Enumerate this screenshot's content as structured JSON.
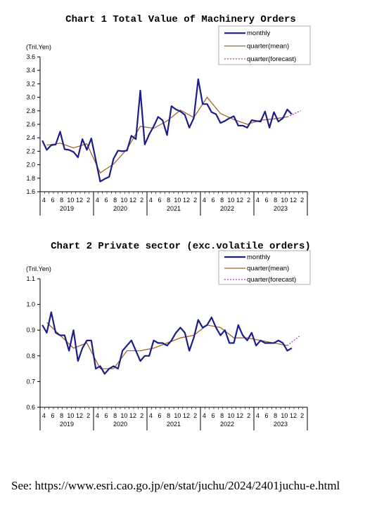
{
  "footer": {
    "text": "See: https://www.esri.cao.go.jp/en/stat/juchu/2024/2401juchu-e.html"
  },
  "chart_data": [
    {
      "type": "line",
      "title": "Chart 1 Total Value of Machinery Orders",
      "ylabel": "(Tril.Yen)",
      "ylim": [
        1.6,
        3.6
      ],
      "yticks": [
        "1.6",
        "1.8",
        "2.0",
        "2.2",
        "2.4",
        "2.6",
        "2.8",
        "3.0",
        "3.2",
        "3.4",
        "3.6"
      ],
      "x_month_labels": [
        "4",
        "6",
        "8",
        "10",
        "12",
        "2",
        "4",
        "6",
        "8",
        "10",
        "12",
        "2",
        "4",
        "6",
        "8",
        "10",
        "12",
        "2",
        "4",
        "6",
        "8",
        "10",
        "12",
        "2",
        "4",
        "6",
        "8",
        "10",
        "12",
        "2"
      ],
      "x_year_labels": [
        "2019",
        "2020",
        "2021",
        "2022",
        "2023"
      ],
      "legend": [
        "monthly",
        "quarter(mean)",
        "quarter(forecast)"
      ],
      "colors": {
        "monthly": "#1c1c8a",
        "quarter_mean": "#a0682a",
        "quarter_forecast": "#b030b0"
      },
      "series": [
        {
          "name": "monthly",
          "values": [
            2.36,
            2.22,
            2.29,
            2.3,
            2.49,
            2.23,
            2.22,
            2.19,
            2.11,
            2.38,
            2.22,
            2.39,
            2.07,
            1.75,
            1.79,
            1.82,
            2.09,
            2.21,
            2.2,
            2.21,
            2.43,
            2.38,
            3.1,
            2.3,
            2.45,
            2.57,
            2.71,
            2.66,
            2.44,
            2.87,
            2.82,
            2.79,
            2.74,
            2.55,
            2.69,
            3.27,
            2.9,
            2.9,
            2.78,
            2.75,
            2.62,
            2.65,
            2.69,
            2.72,
            2.58,
            2.58,
            2.55,
            2.66,
            2.65,
            2.64,
            2.79,
            2.55,
            2.78,
            2.64,
            2.69,
            2.82,
            2.75
          ]
        },
        {
          "name": "quarter(mean)",
          "points": [
            [
              1,
              2.29
            ],
            [
              4,
              2.32
            ],
            [
              7,
              2.25
            ],
            [
              10,
              2.31
            ],
            [
              13,
              1.88
            ],
            [
              16,
              2.01
            ],
            [
              19,
              2.23
            ],
            [
              22,
              2.57
            ],
            [
              25,
              2.54
            ],
            [
              28,
              2.65
            ],
            [
              31,
              2.81
            ],
            [
              34,
              2.7
            ],
            [
              37,
              3.0
            ],
            [
              40,
              2.76
            ],
            [
              43,
              2.67
            ],
            [
              46,
              2.6
            ],
            [
              49,
              2.66
            ],
            [
              52,
              2.68
            ],
            [
              55,
              2.71
            ]
          ]
        },
        {
          "name": "quarter(forecast)",
          "points": [
            [
              55,
              2.71
            ],
            [
              58,
              2.8
            ]
          ]
        }
      ]
    },
    {
      "type": "line",
      "title": "Chart 2 Private sector (exc.volatile orders)",
      "ylabel": "(Tril.Yen)",
      "ylim": [
        0.6,
        1.1
      ],
      "yticks": [
        "0.6",
        "0.7",
        "0.8",
        "0.9",
        "1.0",
        "1.1"
      ],
      "x_month_labels": [
        "4",
        "6",
        "8",
        "10",
        "12",
        "2",
        "4",
        "6",
        "8",
        "10",
        "12",
        "2",
        "4",
        "6",
        "8",
        "10",
        "12",
        "2",
        "4",
        "6",
        "8",
        "10",
        "12",
        "2",
        "4",
        "6",
        "8",
        "10",
        "12",
        "2"
      ],
      "x_year_labels": [
        "2019",
        "2020",
        "2021",
        "2022",
        "2023"
      ],
      "legend": [
        "monthly",
        "quarter(mean)",
        "quarter(forecast)"
      ],
      "colors": {
        "monthly": "#1c1c8a",
        "quarter_mean": "#a0682a",
        "quarter_forecast": "#b030b0"
      },
      "series": [
        {
          "name": "monthly",
          "values": [
            0.92,
            0.89,
            0.97,
            0.89,
            0.88,
            0.88,
            0.82,
            0.9,
            0.78,
            0.83,
            0.86,
            0.86,
            0.75,
            0.76,
            0.73,
            0.75,
            0.76,
            0.75,
            0.82,
            0.84,
            0.86,
            0.82,
            0.78,
            0.8,
            0.8,
            0.86,
            0.85,
            0.85,
            0.84,
            0.86,
            0.89,
            0.91,
            0.89,
            0.82,
            0.87,
            0.94,
            0.91,
            0.92,
            0.95,
            0.91,
            0.88,
            0.9,
            0.85,
            0.85,
            0.92,
            0.88,
            0.86,
            0.89,
            0.84,
            0.86,
            0.85,
            0.85,
            0.85,
            0.86,
            0.85,
            0.82,
            0.83
          ]
        },
        {
          "name": "quarter(mean)",
          "points": [
            [
              1,
              0.93
            ],
            [
              4,
              0.88
            ],
            [
              7,
              0.83
            ],
            [
              10,
              0.85
            ],
            [
              13,
              0.75
            ],
            [
              16,
              0.75
            ],
            [
              19,
              0.82
            ],
            [
              22,
              0.82
            ],
            [
              25,
              0.83
            ],
            [
              28,
              0.85
            ],
            [
              31,
              0.87
            ],
            [
              34,
              0.88
            ],
            [
              37,
              0.92
            ],
            [
              40,
              0.91
            ],
            [
              43,
              0.87
            ],
            [
              46,
              0.87
            ],
            [
              49,
              0.86
            ],
            [
              52,
              0.85
            ],
            [
              55,
              0.84
            ]
          ]
        },
        {
          "name": "quarter(forecast)",
          "points": [
            [
              55,
              0.84
            ],
            [
              58,
              0.88
            ]
          ]
        }
      ]
    }
  ]
}
